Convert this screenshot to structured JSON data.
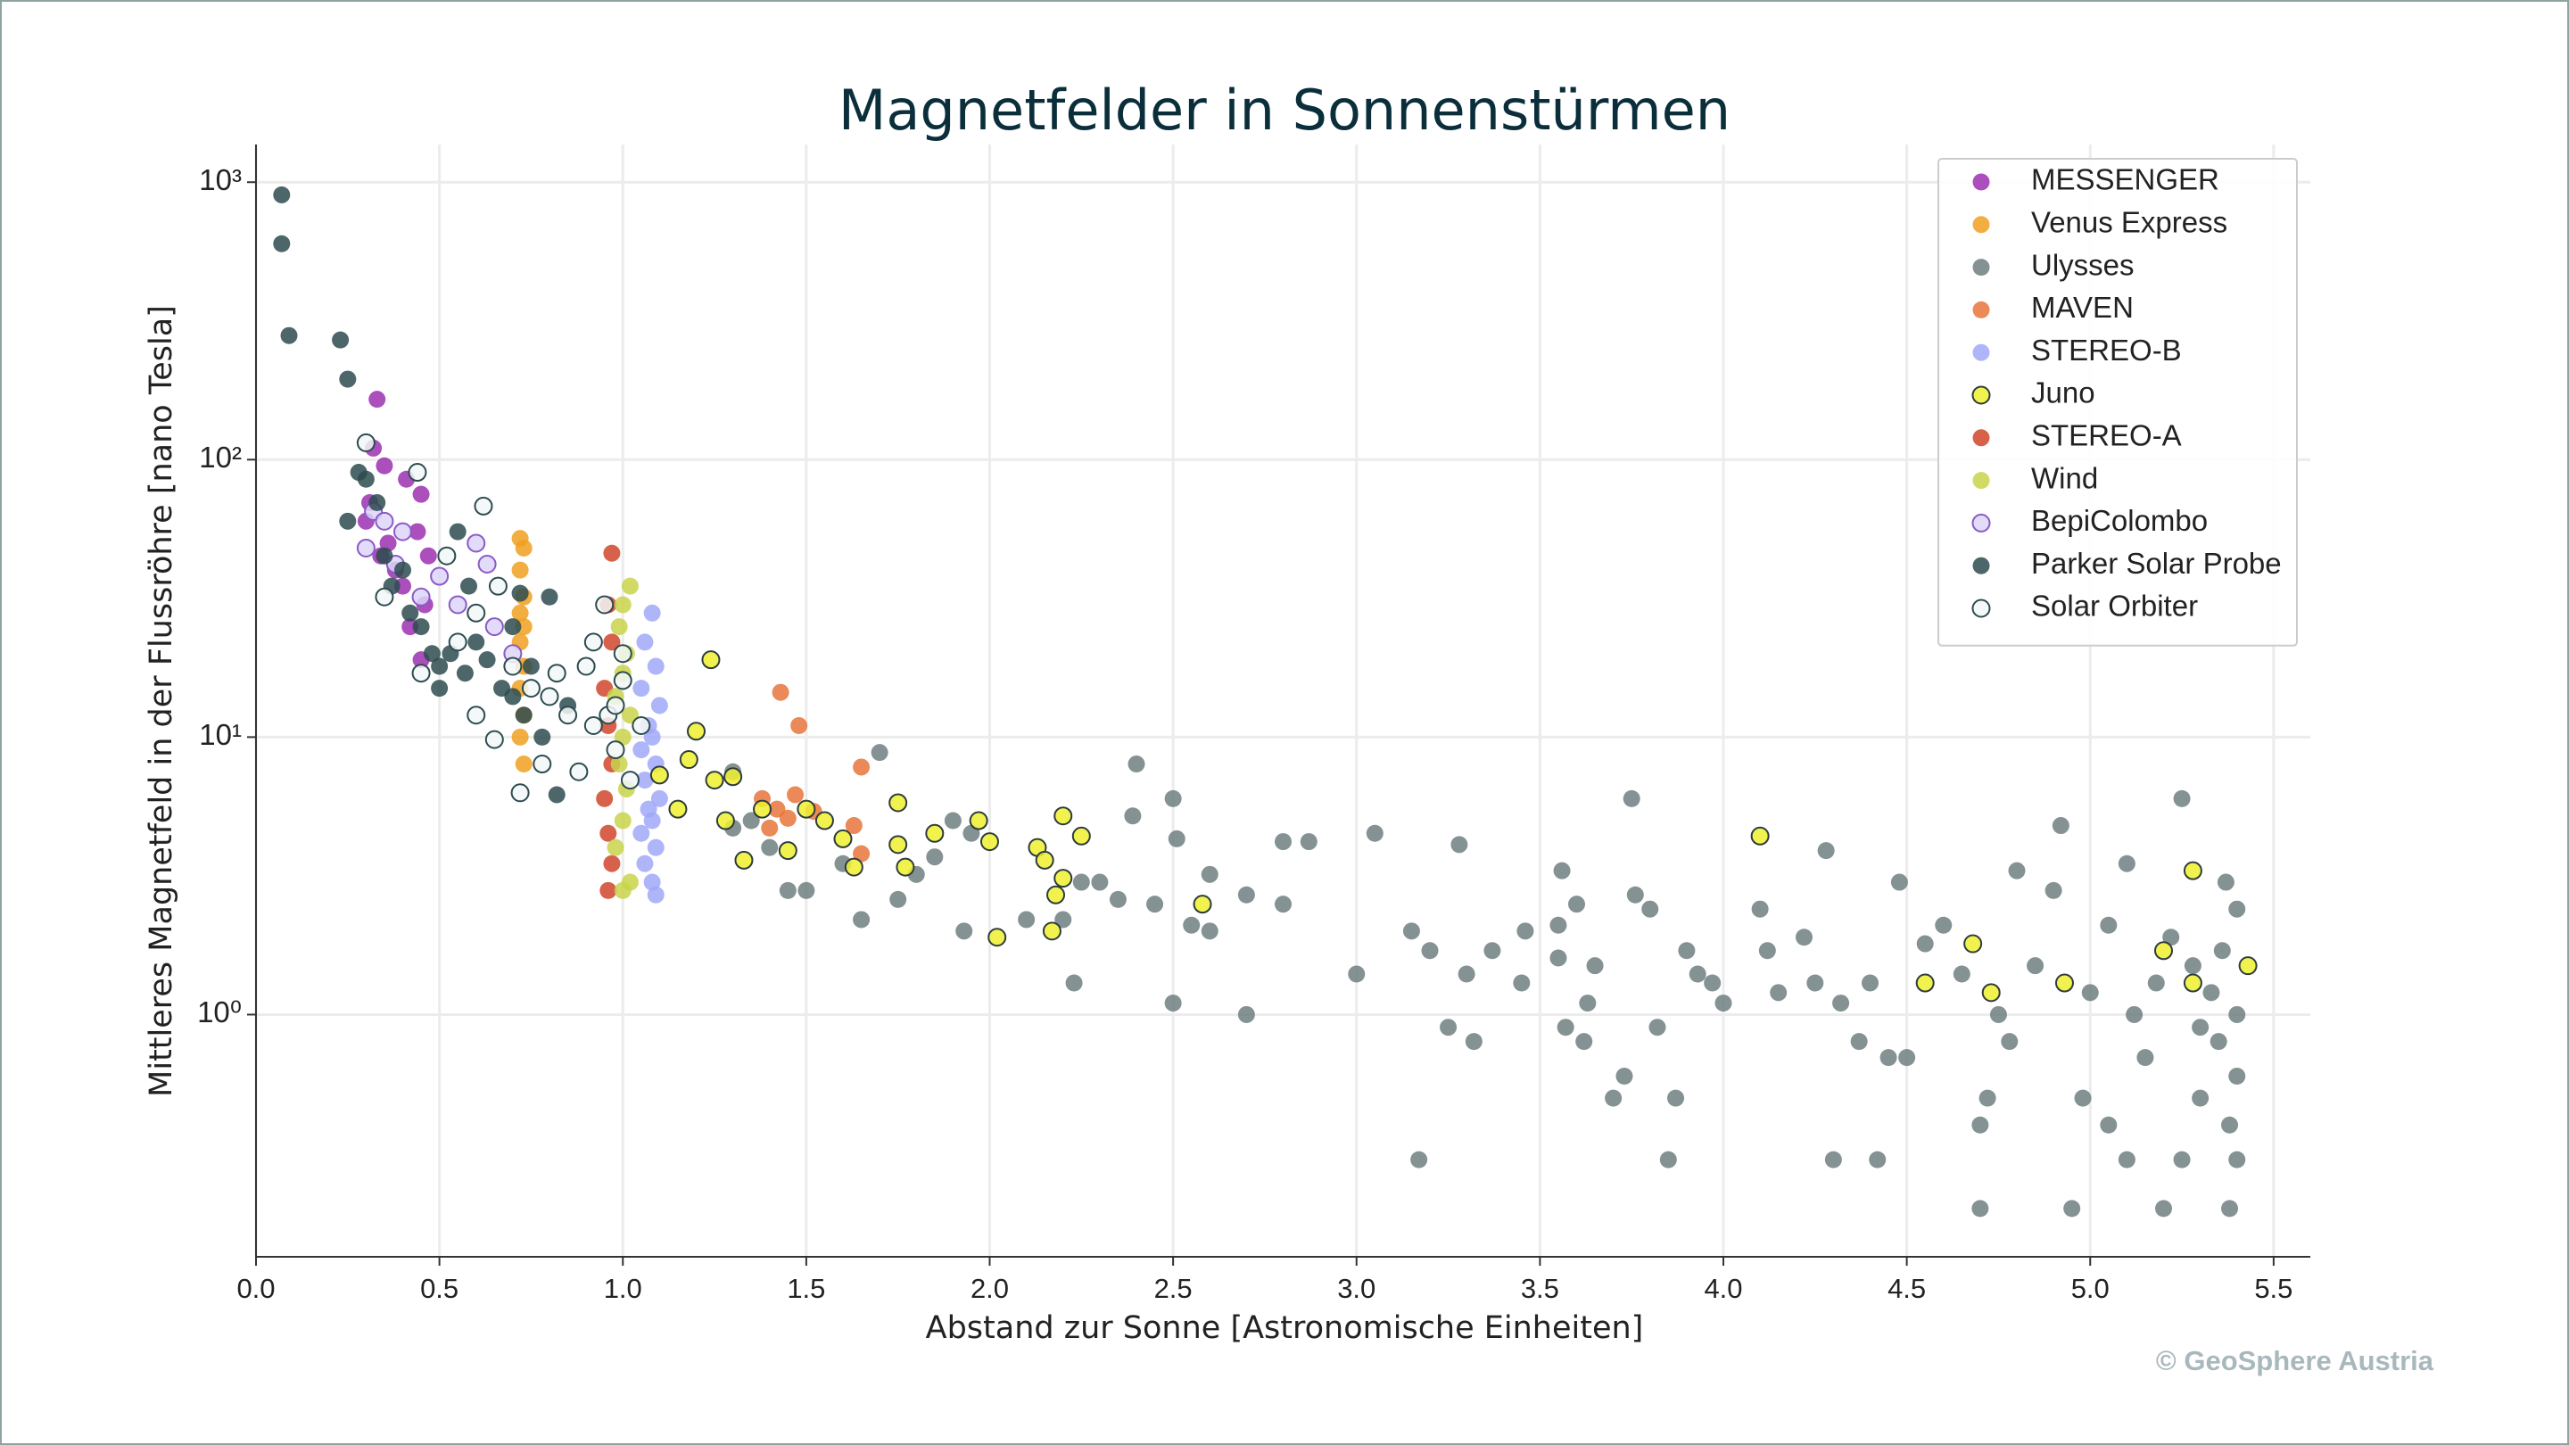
{
  "chart_data": {
    "type": "scatter",
    "title": "Magnetfelder in Sonnenstürmen",
    "x_label": "Abstand zur Sonne [Astronomische Einheiten]",
    "y_label": "Mittleres Magnetfeld in der Flussröhre [nano Tesla]",
    "credit": "© GeoSphere Austria",
    "xlim": [
      0,
      5.6
    ],
    "ylim": [
      0.134,
      1367
    ],
    "yscale": "log",
    "grid": true,
    "legend": "upper right",
    "xticks": [
      {
        "value": 0,
        "label": "0.0"
      },
      0.5,
      {
        "value": 1,
        "label": "1.0"
      },
      1.5,
      {
        "value": 2,
        "label": "2.0"
      },
      2.5,
      {
        "value": 3,
        "label": "3.0"
      },
      3.5,
      {
        "value": 4,
        "label": "4.0"
      },
      4.5,
      {
        "value": 5,
        "label": "5.0"
      },
      5.5
    ],
    "yticks": [
      {
        "value": 1,
        "label": "10⁰"
      },
      {
        "value": 10,
        "label": "10¹"
      },
      {
        "value": 100,
        "label": "10²"
      },
      {
        "value": 1000,
        "label": "10³"
      }
    ],
    "series": [
      {
        "name": "MESSENGER",
        "color": "#9b30b0",
        "x": [
          0.33,
          0.32,
          0.35,
          0.41,
          0.45,
          0.3,
          0.34,
          0.38,
          0.4,
          0.44,
          0.46,
          0.42,
          0.45,
          0.36,
          0.31,
          0.47
        ],
        "values": [
          165,
          110,
          95,
          85,
          75,
          60,
          45,
          40,
          35,
          55,
          30,
          25,
          19,
          50,
          70,
          45
        ]
      },
      {
        "name": "Venus Express",
        "color": "#f0a020",
        "x": [
          0.72,
          0.73,
          0.72,
          0.73,
          0.72,
          0.73,
          0.72,
          0.73,
          0.72,
          0.73,
          0.72,
          0.73
        ],
        "values": [
          52,
          48,
          40,
          32,
          28,
          25,
          22,
          18,
          15,
          12,
          10,
          8
        ]
      },
      {
        "name": "Ulysses",
        "color": "#6e7f80",
        "x": [
          2.4,
          2.5,
          2.39,
          2.51,
          2.6,
          2.3,
          2.35,
          2.45,
          2.55,
          2.6,
          2.23,
          2.5,
          2.7,
          2.7,
          2.8,
          2.8,
          2.87,
          3.05,
          3.0,
          3.15,
          3.17,
          3.2,
          3.25,
          3.28,
          3.3,
          3.32,
          3.37,
          3.45,
          3.46,
          3.55,
          3.55,
          3.56,
          3.57,
          3.6,
          3.62,
          3.63,
          3.65,
          3.7,
          3.73,
          3.75,
          3.76,
          3.8,
          3.82,
          3.85,
          3.87,
          3.9,
          3.93,
          3.97,
          4.0,
          4.1,
          4.12,
          4.15,
          4.22,
          4.25,
          4.28,
          4.3,
          4.32,
          4.37,
          4.4,
          4.42,
          4.45,
          4.48,
          4.5,
          4.55,
          4.6,
          4.65,
          4.7,
          4.72,
          4.75,
          4.78,
          4.8,
          4.85,
          4.9,
          4.92,
          4.95,
          4.98,
          5.0,
          5.05,
          5.1,
          5.1,
          5.12,
          5.15,
          5.2,
          5.22,
          5.25,
          5.25,
          5.28,
          5.3,
          5.33,
          5.35,
          5.37,
          5.38,
          5.38,
          5.4,
          5.4,
          5.4,
          5.4,
          5.36,
          5.3,
          5.18,
          5.05,
          4.7,
          1.9,
          1.95,
          1.85,
          1.8,
          1.7,
          1.75,
          1.65,
          1.5,
          1.45,
          1.35,
          1.4,
          2.1,
          2.2,
          2.25,
          1.93,
          1.6,
          1.3,
          1.3
        ],
        "values": [
          8,
          6,
          5.2,
          4.3,
          3.2,
          3,
          2.6,
          2.5,
          2.1,
          2.0,
          1.3,
          1.1,
          1.0,
          2.7,
          2.5,
          4.2,
          4.2,
          4.5,
          1.4,
          2.0,
          0.3,
          1.7,
          0.9,
          4.1,
          1.4,
          0.8,
          1.7,
          1.3,
          2.0,
          2.1,
          1.6,
          3.3,
          0.9,
          2.5,
          0.8,
          1.1,
          1.5,
          0.5,
          0.6,
          6.0,
          2.7,
          2.4,
          0.9,
          0.3,
          0.5,
          1.7,
          1.4,
          1.3,
          1.1,
          2.4,
          1.7,
          1.2,
          1.9,
          1.3,
          3.9,
          0.3,
          1.1,
          0.8,
          1.3,
          0.3,
          0.7,
          3.0,
          0.7,
          1.8,
          2.1,
          1.4,
          0.4,
          0.5,
          1.0,
          0.8,
          3.3,
          1.5,
          2.8,
          4.8,
          0.2,
          0.5,
          1.2,
          0.4,
          3.5,
          0.3,
          1.0,
          0.7,
          0.2,
          1.9,
          6.0,
          0.3,
          1.5,
          0.5,
          1.2,
          0.8,
          3.0,
          0.2,
          0.4,
          2.4,
          1.0,
          0.6,
          0.3,
          1.7,
          0.9,
          1.3,
          2.1,
          0.2,
          5,
          4.5,
          3.7,
          3.2,
          8.8,
          2.6,
          2.2,
          2.8,
          2.8,
          5,
          4,
          2.2,
          2.2,
          3.0,
          2.0,
          3.5,
          7.5,
          4.7
        ]
      },
      {
        "name": "MAVEN",
        "color": "#e8743b",
        "x": [
          1.43,
          1.48,
          1.65,
          1.38,
          1.42,
          1.47,
          1.63,
          1.4,
          1.45,
          1.65,
          1.52
        ],
        "values": [
          14.5,
          11,
          7.8,
          6.0,
          5.5,
          6.2,
          4.8,
          4.7,
          5.1,
          3.8,
          5.4
        ]
      },
      {
        "name": "STEREO-B",
        "color": "#a0a8f8",
        "x": [
          1.08,
          1.06,
          1.09,
          1.05,
          1.1,
          1.07,
          1.08,
          1.05,
          1.09,
          1.06,
          1.1,
          1.07,
          1.08,
          1.05,
          1.09,
          1.06,
          1.08,
          1.09
        ],
        "values": [
          28,
          22,
          18,
          15,
          13,
          11,
          10,
          9,
          8,
          7,
          6,
          5.5,
          5,
          4.5,
          4,
          3.5,
          3.0,
          2.7
        ]
      },
      {
        "name": "Juno",
        "color": "#f0f030",
        "edgecolor": "#2d3b3c",
        "x": [
          1.24,
          1.2,
          1.18,
          1.25,
          1.3,
          1.28,
          1.33,
          1.38,
          1.45,
          1.5,
          1.55,
          1.6,
          1.63,
          1.75,
          1.75,
          1.77,
          1.85,
          1.97,
          2.0,
          2.02,
          2.13,
          2.15,
          2.18,
          2.17,
          2.2,
          2.2,
          2.25,
          2.58,
          4.1,
          4.55,
          4.68,
          4.73,
          4.93,
          5.2,
          5.28,
          5.28,
          5.43,
          1.15,
          1.1
        ],
        "values": [
          19,
          10.5,
          8.3,
          7.0,
          7.2,
          5,
          3.6,
          5.5,
          3.9,
          5.5,
          5.0,
          4.3,
          3.4,
          5.8,
          4.1,
          3.4,
          4.5,
          5.0,
          4.2,
          1.9,
          4.0,
          3.6,
          2.7,
          2.0,
          5.2,
          3.1,
          4.4,
          2.5,
          4.4,
          1.3,
          1.8,
          1.2,
          1.3,
          1.7,
          3.3,
          1.3,
          1.5,
          5.5,
          7.3
        ]
      },
      {
        "name": "STEREO-A",
        "color": "#d0452a",
        "x": [
          0.97,
          0.96,
          0.97,
          0.95,
          0.96,
          0.97,
          0.95,
          0.96,
          0.97,
          0.96
        ],
        "values": [
          46,
          30,
          22,
          15,
          11,
          8,
          6,
          4.5,
          3.5,
          2.8
        ]
      },
      {
        "name": "Wind",
        "color": "#c8d44a",
        "x": [
          1.02,
          1.0,
          0.99,
          1.01,
          1.0,
          0.98,
          1.02,
          1.0,
          0.99,
          1.01,
          1.0,
          0.98,
          1.02,
          1.0
        ],
        "values": [
          35,
          30,
          25,
          20,
          17,
          14,
          12,
          10,
          8,
          6.5,
          5,
          4,
          3,
          2.8
        ]
      },
      {
        "name": "BepiColombo",
        "color": "#ddd5f8",
        "edgecolor": "#8a5ac8",
        "x": [
          0.32,
          0.35,
          0.4,
          0.6,
          0.63,
          0.5,
          0.55,
          0.45,
          0.3,
          0.65,
          0.7,
          0.38
        ],
        "values": [
          65,
          60,
          55,
          50,
          42,
          38,
          30,
          32,
          48,
          25,
          20,
          42
        ]
      },
      {
        "name": "Parker Solar Probe",
        "color": "#2d4b4f",
        "x": [
          0.07,
          0.07,
          0.09,
          0.23,
          0.25,
          0.25,
          0.28,
          0.3,
          0.33,
          0.35,
          0.37,
          0.4,
          0.42,
          0.45,
          0.48,
          0.5,
          0.53,
          0.55,
          0.57,
          0.6,
          0.63,
          0.67,
          0.7,
          0.72,
          0.73,
          0.75,
          0.78,
          0.8,
          0.82,
          0.7,
          0.85,
          0.5,
          0.58
        ],
        "values": [
          900,
          600,
          280,
          270,
          195,
          60,
          90,
          85,
          70,
          45,
          35,
          40,
          28,
          25,
          20,
          18,
          20,
          55,
          17,
          22,
          19,
          15,
          25,
          33,
          12,
          18,
          10,
          32,
          6.2,
          14,
          13,
          15,
          35
        ]
      },
      {
        "name": "Solar Orbiter",
        "color": "#f2f7f7",
        "edgecolor": "#2d4b4f",
        "x": [
          0.3,
          0.44,
          0.62,
          0.52,
          0.66,
          0.6,
          0.55,
          0.7,
          0.75,
          0.8,
          0.85,
          0.9,
          0.92,
          0.95,
          0.96,
          0.98,
          1.0,
          1.02,
          0.65,
          0.72,
          0.78,
          0.88,
          0.92,
          0.82,
          0.6,
          0.45,
          0.35,
          0.98,
          1.05,
          1.0
        ],
        "values": [
          115,
          90,
          68,
          45,
          35,
          28,
          22,
          18,
          15,
          14,
          12,
          18,
          22,
          30,
          12,
          9,
          16,
          7,
          9.8,
          6.3,
          8,
          7.5,
          11,
          17,
          12,
          17,
          32,
          13,
          11,
          20
        ]
      }
    ]
  }
}
